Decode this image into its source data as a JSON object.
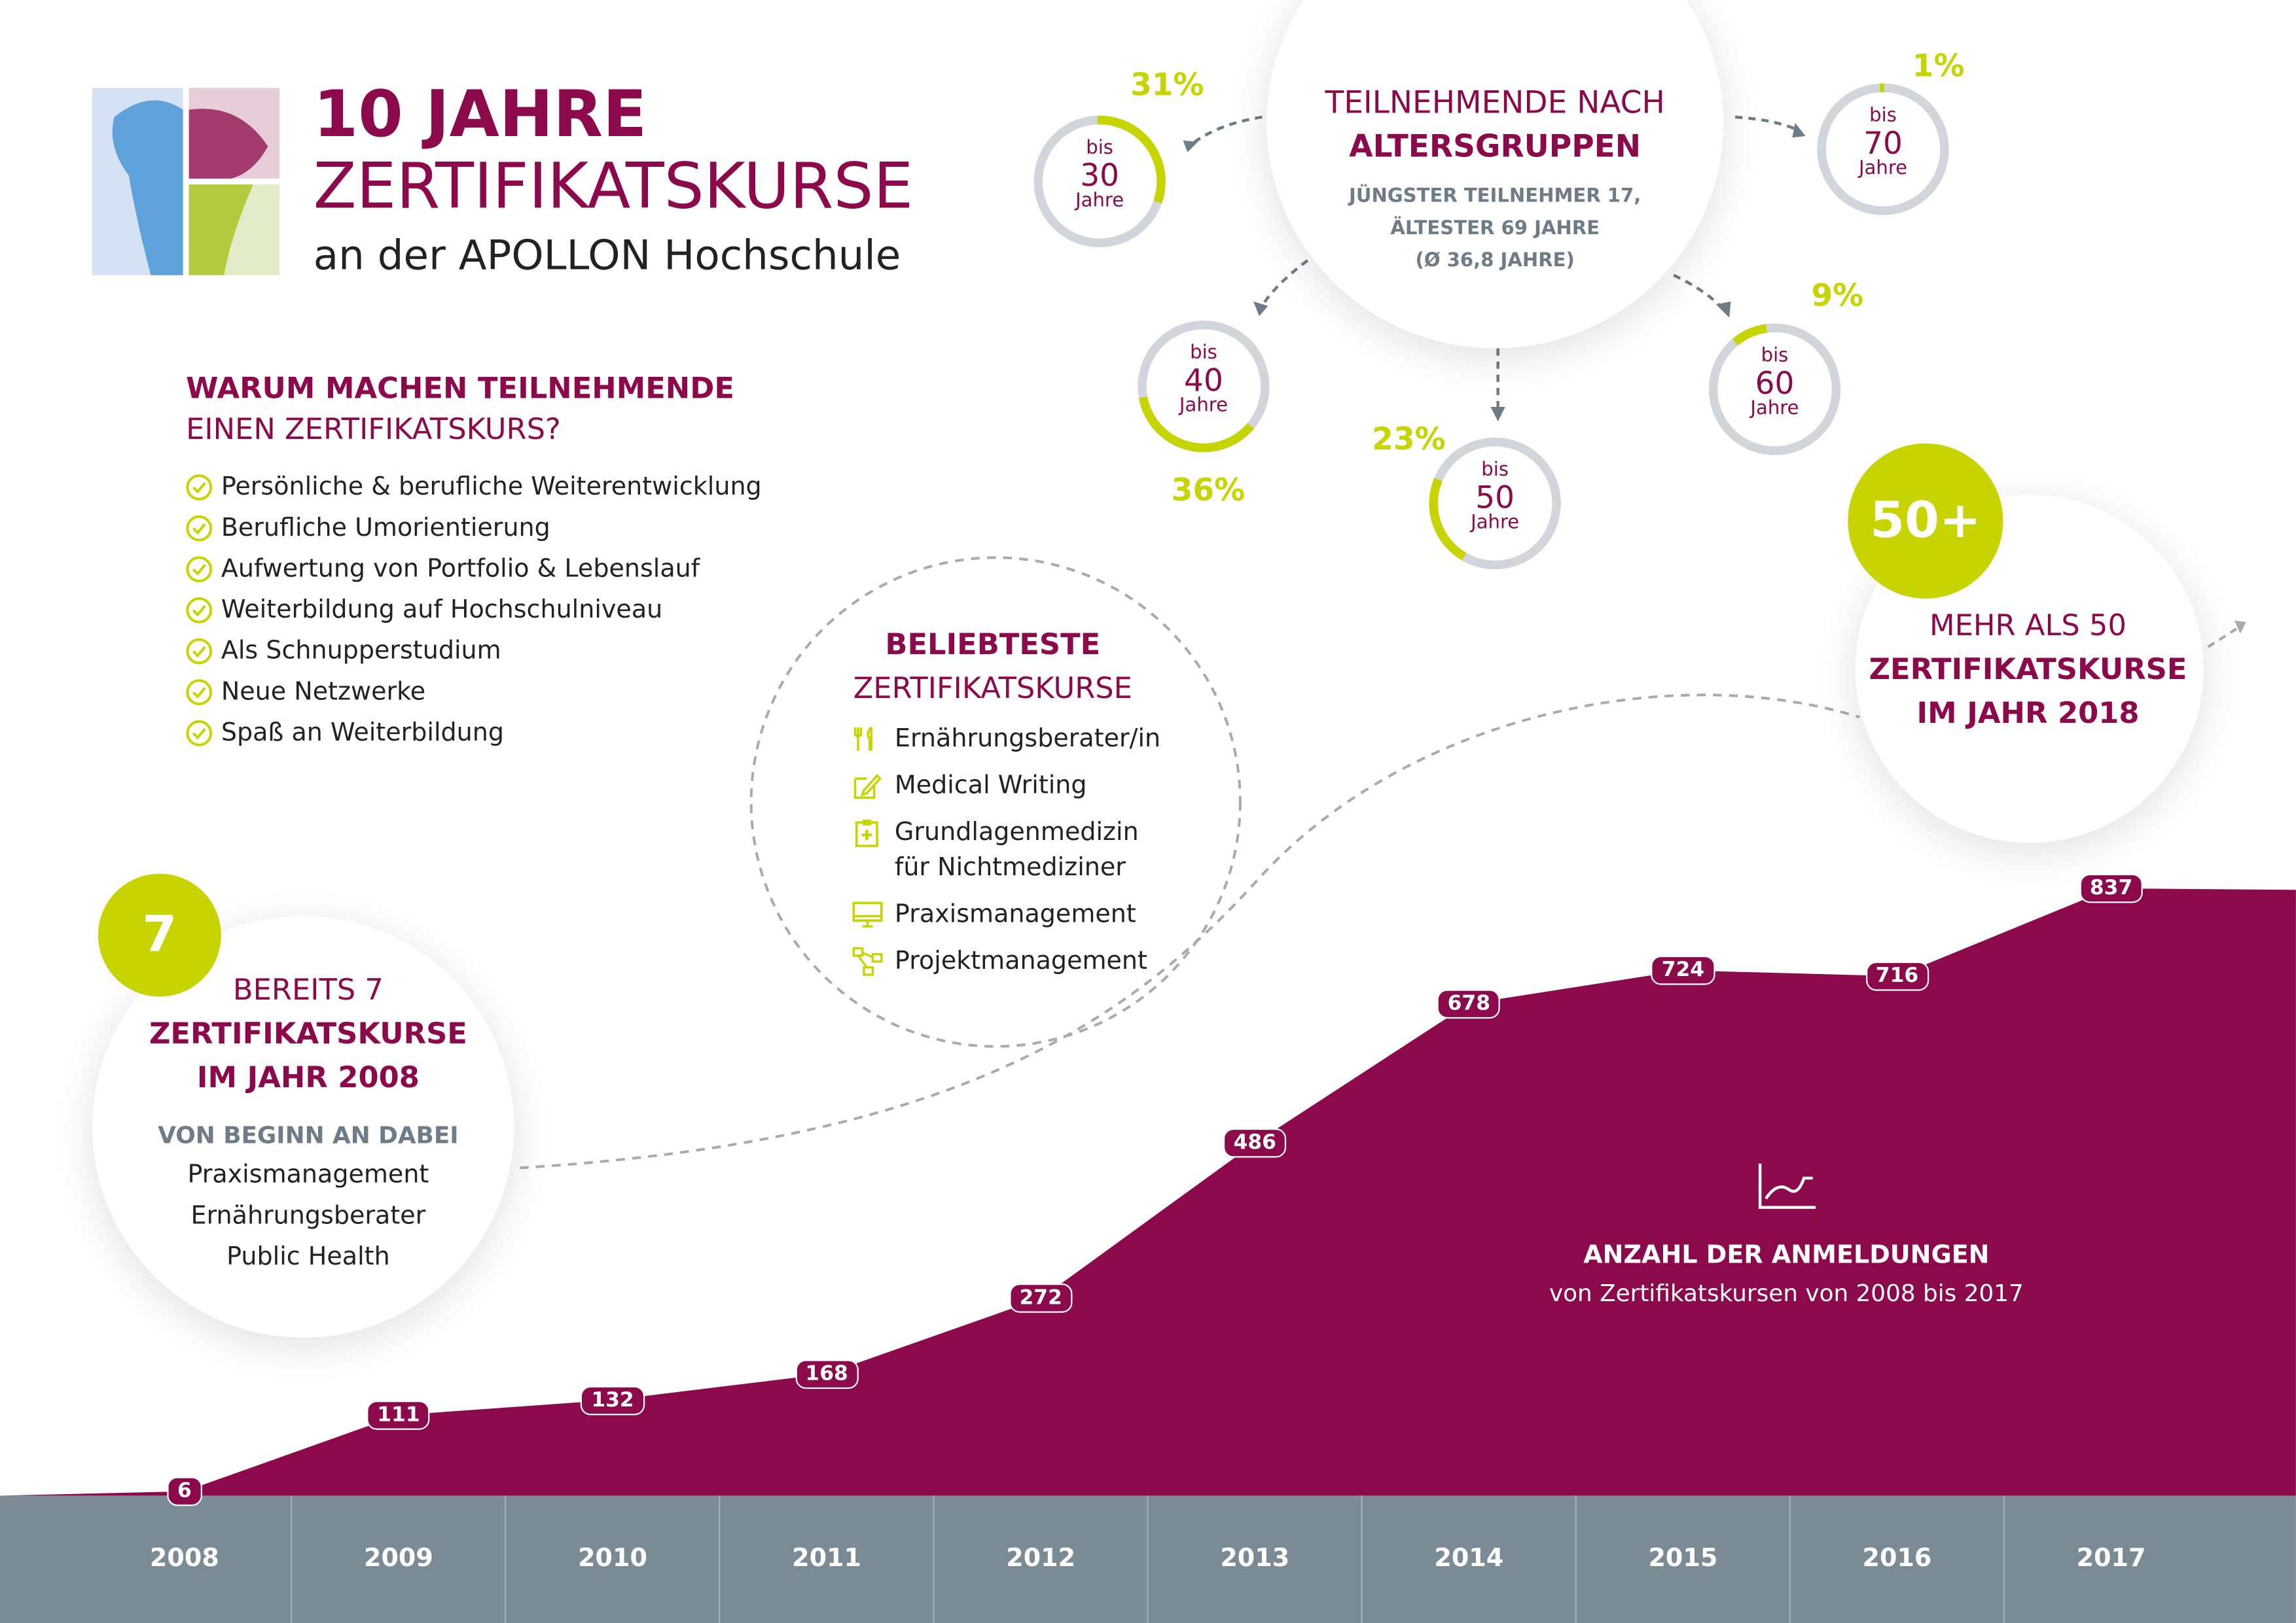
{
  "header": {
    "title_line1": "10 JAHRE",
    "title_line2": "ZERTIFIKATSKURSE",
    "subtitle": "an der APOLLON Hochschule"
  },
  "reasons": {
    "title_bold": "WARUM MACHEN TEILNEHMENDE",
    "title_regular": "EINEN ZERTIFIKATSKURS?",
    "items": [
      "Persönliche & berufliche Weiterentwicklung",
      "Berufliche Umorientierung",
      "Aufwertung von Portfolio & Lebenslauf",
      "Weiterbildung auf Hochschulniveau",
      "Als Schnupperstudium",
      "Neue Netzwerke",
      "Spaß an Weiterbildung"
    ]
  },
  "age": {
    "title_regular": "TEILNEHMENDE NACH",
    "title_bold": "ALTERSGRUPPEN",
    "line1": "JÜNGSTER TEILNEHMER 17,",
    "line2": "ÄLTESTER 69 JAHRE",
    "line3": "(Ø 36,8 JAHRE)",
    "groups": [
      {
        "bis": "bis",
        "age": "30",
        "unit": "Jahre",
        "pct_label": "31%",
        "pct": 31
      },
      {
        "bis": "bis",
        "age": "40",
        "unit": "Jahre",
        "pct_label": "36%",
        "pct": 36
      },
      {
        "bis": "bis",
        "age": "50",
        "unit": "Jahre",
        "pct_label": "23%",
        "pct": 23
      },
      {
        "bis": "bis",
        "age": "60",
        "unit": "Jahre",
        "pct_label": "9%",
        "pct": 9
      },
      {
        "bis": "bis",
        "age": "70",
        "unit": "Jahre",
        "pct_label": "1%",
        "pct": 1
      }
    ]
  },
  "popular": {
    "title_bold": "BELIEBTESTE",
    "title_regular": "ZERTIFIKATSKURSE",
    "items": [
      {
        "icon": "cutlery-icon",
        "lines": [
          "Ernährungsberater/in"
        ]
      },
      {
        "icon": "edit-icon",
        "lines": [
          "Medical Writing"
        ]
      },
      {
        "icon": "clipboard-medical-icon",
        "lines": [
          "Grundlagenmedizin",
          "für Nichtmediziner"
        ]
      },
      {
        "icon": "monitor-icon",
        "lines": [
          "Praxismanagement"
        ]
      },
      {
        "icon": "network-icon",
        "lines": [
          "Projektmanagement"
        ]
      }
    ]
  },
  "start": {
    "badge": "7",
    "line1": "BEREITS 7",
    "line2": "ZERTIFIKATSKURSE",
    "line3": "IM JAHR 2008",
    "sub_title": "VON BEGINN AN DABEI",
    "courses": [
      "Praxismanagement",
      "Ernährungsberater",
      "Public Health"
    ]
  },
  "future": {
    "badge": "50+",
    "line1": "MEHR ALS 50",
    "line2": "ZERTIFIKATSKURSE",
    "line3": "IM JAHR 2018"
  },
  "chart_caption": {
    "title": "ANZAHL DER ANMELDUNGEN",
    "subtitle": "von Zertifikatskursen von 2008 bis 2017"
  },
  "colors": {
    "magenta": "#8c0a4b",
    "lime": "#c8d400",
    "grey": "#7b8b95"
  },
  "chart_data": {
    "type": "area",
    "title": "ANZAHL DER ANMELDUNGEN",
    "x": [
      "2008",
      "2009",
      "2010",
      "2011",
      "2012",
      "2013",
      "2014",
      "2015",
      "2016",
      "2017"
    ],
    "values": [
      6,
      111,
      132,
      168,
      272,
      486,
      678,
      724,
      716,
      837
    ],
    "ylim": [
      0,
      837
    ]
  }
}
